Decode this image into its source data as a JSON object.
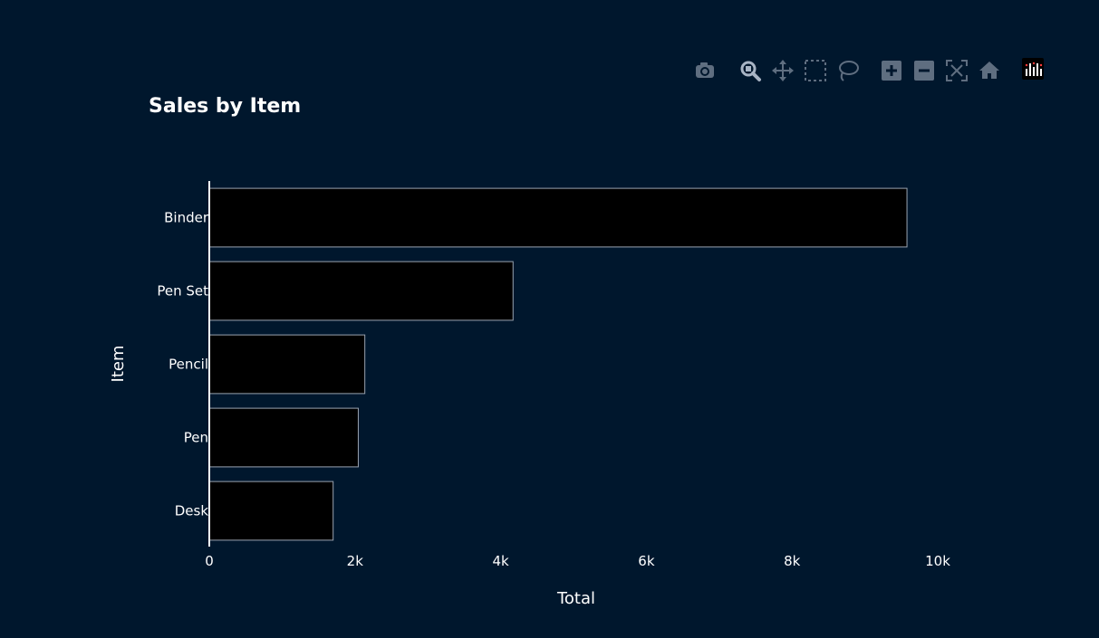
{
  "colors": {
    "background": "#00172d",
    "bar_fill": "#000000",
    "bar_outline": "#9aa4b1",
    "text": "#ffffff",
    "axis_line": "#ffffff",
    "modebar_icon": "#5f6e80",
    "modebar_active": "#a8b4c4"
  },
  "modebar": {
    "buttons": [
      {
        "name": "camera-icon",
        "active": false
      },
      {
        "name": "zoom-icon",
        "active": true
      },
      {
        "name": "pan-icon",
        "active": false
      },
      {
        "name": "box-select-icon",
        "active": false
      },
      {
        "name": "lasso-select-icon",
        "active": false
      },
      {
        "name": "zoom-in-icon",
        "active": false
      },
      {
        "name": "zoom-out-icon",
        "active": false
      },
      {
        "name": "autoscale-icon",
        "active": false
      },
      {
        "name": "reset-axes-icon",
        "active": false
      },
      {
        "name": "plotly-logo-icon",
        "active": false
      }
    ]
  },
  "chart_data": {
    "type": "bar",
    "orientation": "horizontal",
    "title": "Sales by Item",
    "xlabel": "Total",
    "ylabel": "Item",
    "categories": [
      "Binder",
      "Pen Set",
      "Pencil",
      "Pen",
      "Desk"
    ],
    "values": [
      9577.65,
      4169.87,
      2135.14,
      2045.22,
      1700.0
    ],
    "xlim": [
      0,
      10000
    ],
    "xticks": [
      0,
      2000,
      4000,
      6000,
      8000,
      10000
    ],
    "xtick_labels": [
      "0",
      "2k",
      "4k",
      "6k",
      "8k",
      "10k"
    ],
    "grid": false,
    "legend": "none"
  }
}
